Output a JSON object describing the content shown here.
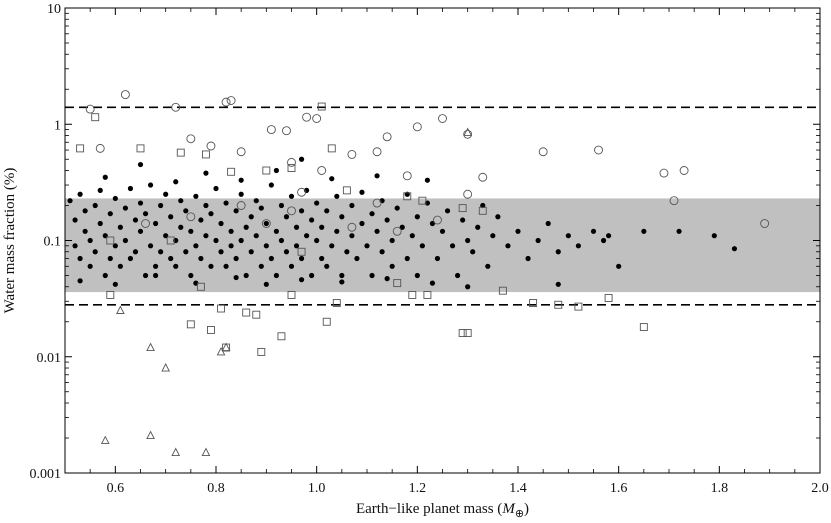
{
  "chart_data": {
    "type": "scatter",
    "title": "",
    "xlabel": "Earth−like planet mass (",
    "xlabel_symbol": "M",
    "xlabel_sub": "⊕",
    "xlabel_close": ")",
    "ylabel": "Water mass fraction (%)",
    "xlim": [
      0.5,
      2.0
    ],
    "ylim": [
      0.001,
      10
    ],
    "yscale": "log",
    "grid": false,
    "x_ticks": [
      0.6,
      0.8,
      1.0,
      1.2,
      1.4,
      1.6,
      1.8,
      2.0
    ],
    "x_tick_labels": [
      "0.6",
      "0.8",
      "1.0",
      "1.2",
      "1.4",
      "1.6",
      "1.8",
      "2.0"
    ],
    "y_ticks": [
      0.001,
      0.01,
      0.1,
      1,
      10
    ],
    "y_tick_labels": [
      "0.001",
      "0.01",
      "0.1",
      "1",
      "10"
    ],
    "reference_lines": {
      "upper": 1.4,
      "lower": 0.028,
      "style": "dashed"
    },
    "shaded_band": {
      "low": 0.036,
      "high": 0.23,
      "color": "#c0c0c0"
    },
    "colors": {
      "band": "#c0c0c0",
      "markers": "#000000",
      "open_markers": "#555555"
    },
    "series": [
      {
        "marker": "filled-circle",
        "points": [
          [
            0.51,
            0.22
          ],
          [
            0.52,
            0.15
          ],
          [
            0.52,
            0.09
          ],
          [
            0.53,
            0.25
          ],
          [
            0.53,
            0.07
          ],
          [
            0.54,
            0.12
          ],
          [
            0.54,
            0.18
          ],
          [
            0.55,
            0.06
          ],
          [
            0.55,
            0.1
          ],
          [
            0.56,
            0.2
          ],
          [
            0.56,
            0.08
          ],
          [
            0.57,
            0.14
          ],
          [
            0.57,
            0.27
          ],
          [
            0.58,
            0.05
          ],
          [
            0.58,
            0.11
          ],
          [
            0.59,
            0.17
          ],
          [
            0.59,
            0.07
          ],
          [
            0.6,
            0.23
          ],
          [
            0.6,
            0.09
          ],
          [
            0.61,
            0.13
          ],
          [
            0.61,
            0.06
          ],
          [
            0.62,
            0.19
          ],
          [
            0.62,
            0.1
          ],
          [
            0.63,
            0.28
          ],
          [
            0.63,
            0.07
          ],
          [
            0.64,
            0.15
          ],
          [
            0.64,
            0.08
          ],
          [
            0.65,
            0.21
          ],
          [
            0.65,
            0.12
          ],
          [
            0.66,
            0.05
          ],
          [
            0.66,
            0.17
          ],
          [
            0.67,
            0.09
          ],
          [
            0.67,
            0.3
          ],
          [
            0.68,
            0.06
          ],
          [
            0.68,
            0.14
          ],
          [
            0.69,
            0.2
          ],
          [
            0.69,
            0.08
          ],
          [
            0.7,
            0.11
          ],
          [
            0.7,
            0.25
          ],
          [
            0.71,
            0.07
          ],
          [
            0.71,
            0.16
          ],
          [
            0.72,
            0.1
          ],
          [
            0.72,
            0.06
          ],
          [
            0.73,
            0.22
          ],
          [
            0.73,
            0.13
          ],
          [
            0.74,
            0.08
          ],
          [
            0.74,
            0.18
          ],
          [
            0.75,
            0.05
          ],
          [
            0.75,
            0.12
          ],
          [
            0.76,
            0.24
          ],
          [
            0.76,
            0.09
          ],
          [
            0.77,
            0.15
          ],
          [
            0.77,
            0.07
          ],
          [
            0.78,
            0.2
          ],
          [
            0.78,
            0.11
          ],
          [
            0.79,
            0.06
          ],
          [
            0.79,
            0.17
          ],
          [
            0.8,
            0.1
          ],
          [
            0.8,
            0.28
          ],
          [
            0.81,
            0.08
          ],
          [
            0.81,
            0.14
          ],
          [
            0.82,
            0.06
          ],
          [
            0.82,
            0.21
          ],
          [
            0.83,
            0.12
          ],
          [
            0.83,
            0.09
          ],
          [
            0.84,
            0.18
          ],
          [
            0.84,
            0.07
          ],
          [
            0.85,
            0.25
          ],
          [
            0.85,
            0.1
          ],
          [
            0.86,
            0.13
          ],
          [
            0.86,
            0.05
          ],
          [
            0.87,
            0.16
          ],
          [
            0.87,
            0.08
          ],
          [
            0.88,
            0.22
          ],
          [
            0.88,
            0.11
          ],
          [
            0.89,
            0.06
          ],
          [
            0.89,
            0.19
          ],
          [
            0.9,
            0.09
          ],
          [
            0.9,
            0.14
          ],
          [
            0.91,
            0.3
          ],
          [
            0.91,
            0.07
          ],
          [
            0.92,
            0.12
          ],
          [
            0.92,
            0.05
          ],
          [
            0.93,
            0.2
          ],
          [
            0.93,
            0.1
          ],
          [
            0.94,
            0.16
          ],
          [
            0.94,
            0.08
          ],
          [
            0.95,
            0.24
          ],
          [
            0.95,
            0.06
          ],
          [
            0.96,
            0.13
          ],
          [
            0.96,
            0.09
          ],
          [
            0.97,
            0.18
          ],
          [
            0.97,
            0.07
          ],
          [
            0.98,
            0.11
          ],
          [
            0.98,
            0.27
          ],
          [
            0.99,
            0.05
          ],
          [
            0.99,
            0.15
          ],
          [
            1.0,
            0.1
          ],
          [
            1.0,
            0.21
          ],
          [
            1.01,
            0.07
          ],
          [
            1.01,
            0.13
          ],
          [
            1.02,
            0.06
          ],
          [
            1.02,
            0.18
          ],
          [
            1.03,
            0.09
          ],
          [
            1.04,
            0.24
          ],
          [
            1.04,
            0.12
          ],
          [
            1.05,
            0.05
          ],
          [
            1.05,
            0.16
          ],
          [
            1.06,
            0.08
          ],
          [
            1.07,
            0.2
          ],
          [
            1.07,
            0.11
          ],
          [
            1.08,
            0.07
          ],
          [
            1.09,
            0.14
          ],
          [
            1.09,
            0.26
          ],
          [
            1.1,
            0.09
          ],
          [
            1.11,
            0.05
          ],
          [
            1.11,
            0.17
          ],
          [
            1.12,
            0.12
          ],
          [
            1.13,
            0.08
          ],
          [
            1.13,
            0.22
          ],
          [
            1.14,
            0.15
          ],
          [
            1.15,
            0.06
          ],
          [
            1.15,
            0.1
          ],
          [
            1.16,
            0.19
          ],
          [
            1.17,
            0.13
          ],
          [
            1.18,
            0.07
          ],
          [
            1.18,
            0.25
          ],
          [
            1.19,
            0.11
          ],
          [
            1.2,
            0.16
          ],
          [
            1.2,
            0.05
          ],
          [
            1.21,
            0.09
          ],
          [
            1.22,
            0.21
          ],
          [
            1.23,
            0.14
          ],
          [
            1.24,
            0.07
          ],
          [
            1.25,
            0.12
          ],
          [
            1.26,
            0.18
          ],
          [
            1.27,
            0.09
          ],
          [
            1.28,
            0.05
          ],
          [
            1.29,
            0.15
          ],
          [
            1.3,
            0.1
          ],
          [
            1.31,
            0.08
          ],
          [
            1.32,
            0.13
          ],
          [
            1.33,
            0.2
          ],
          [
            1.34,
            0.06
          ],
          [
            1.35,
            0.11
          ],
          [
            1.36,
            0.16
          ],
          [
            1.38,
            0.09
          ],
          [
            1.4,
            0.12
          ],
          [
            1.42,
            0.07
          ],
          [
            1.44,
            0.1
          ],
          [
            1.46,
            0.14
          ],
          [
            1.48,
            0.08
          ],
          [
            1.5,
            0.11
          ],
          [
            1.52,
            0.09
          ],
          [
            1.55,
            0.12
          ],
          [
            1.57,
            0.1
          ],
          [
            1.58,
            0.11
          ],
          [
            1.6,
            0.06
          ],
          [
            1.65,
            0.12
          ],
          [
            1.72,
            0.12
          ],
          [
            1.79,
            0.11
          ],
          [
            1.83,
            0.085
          ],
          [
            0.58,
            0.35
          ],
          [
            0.65,
            0.45
          ],
          [
            0.72,
            0.32
          ],
          [
            0.78,
            0.38
          ],
          [
            0.85,
            0.33
          ],
          [
            0.92,
            0.4
          ],
          [
            0.97,
            0.5
          ],
          [
            1.03,
            0.34
          ],
          [
            1.12,
            0.36
          ],
          [
            1.22,
            0.33
          ],
          [
            0.53,
            0.045
          ],
          [
            0.6,
            0.042
          ],
          [
            0.68,
            0.05
          ],
          [
            0.76,
            0.043
          ],
          [
            0.84,
            0.048
          ],
          [
            0.9,
            0.042
          ],
          [
            0.97,
            0.046
          ],
          [
            1.05,
            0.044
          ],
          [
            1.14,
            0.047
          ],
          [
            1.23,
            0.043
          ],
          [
            1.3,
            0.04
          ],
          [
            1.48,
            0.042
          ]
        ]
      },
      {
        "marker": "open-circle",
        "points": [
          [
            0.55,
            1.35
          ],
          [
            0.62,
            1.8
          ],
          [
            0.72,
            1.4
          ],
          [
            0.82,
            1.55
          ],
          [
            0.83,
            1.6
          ],
          [
            0.57,
            0.62
          ],
          [
            0.75,
            0.75
          ],
          [
            0.79,
            0.65
          ],
          [
            0.85,
            0.58
          ],
          [
            0.91,
            0.9
          ],
          [
            0.94,
            0.88
          ],
          [
            0.98,
            1.15
          ],
          [
            1.0,
            1.12
          ],
          [
            1.07,
            0.55
          ],
          [
            1.12,
            0.58
          ],
          [
            1.14,
            0.78
          ],
          [
            1.2,
            0.95
          ],
          [
            1.25,
            1.12
          ],
          [
            1.3,
            0.82
          ],
          [
            1.33,
            0.35
          ],
          [
            1.45,
            0.58
          ],
          [
            1.56,
            0.6
          ],
          [
            1.69,
            0.38
          ],
          [
            1.71,
            0.22
          ],
          [
            1.73,
            0.4
          ],
          [
            1.89,
            0.14
          ],
          [
            1.3,
            0.25
          ],
          [
            1.24,
            0.15
          ],
          [
            0.75,
            0.16
          ],
          [
            0.95,
            0.47
          ],
          [
            1.01,
            0.4
          ],
          [
            0.97,
            0.26
          ],
          [
            0.95,
            0.18
          ],
          [
            1.18,
            0.36
          ],
          [
            1.12,
            0.21
          ],
          [
            0.66,
            0.14
          ],
          [
            0.85,
            0.2
          ],
          [
            0.9,
            0.14
          ],
          [
            1.07,
            0.13
          ],
          [
            1.16,
            0.12
          ]
        ]
      },
      {
        "marker": "open-square",
        "points": [
          [
            0.53,
            0.62
          ],
          [
            0.56,
            1.15
          ],
          [
            0.65,
            0.62
          ],
          [
            0.73,
            0.57
          ],
          [
            0.78,
            0.55
          ],
          [
            0.83,
            0.39
          ],
          [
            0.9,
            0.4
          ],
          [
            0.95,
            0.42
          ],
          [
            1.01,
            1.42
          ],
          [
            1.03,
            0.62
          ],
          [
            1.06,
            0.27
          ],
          [
            1.18,
            0.24
          ],
          [
            1.21,
            0.22
          ],
          [
            1.29,
            0.19
          ],
          [
            1.33,
            0.18
          ],
          [
            0.59,
            0.034
          ],
          [
            0.75,
            0.019
          ],
          [
            0.79,
            0.017
          ],
          [
            0.81,
            0.026
          ],
          [
            0.82,
            0.012
          ],
          [
            0.86,
            0.024
          ],
          [
            0.88,
            0.023
          ],
          [
            0.89,
            0.011
          ],
          [
            0.93,
            0.015
          ],
          [
            0.95,
            0.034
          ],
          [
            1.02,
            0.02
          ],
          [
            1.04,
            0.029
          ],
          [
            1.19,
            0.034
          ],
          [
            1.22,
            0.034
          ],
          [
            1.29,
            0.016
          ],
          [
            1.3,
            0.016
          ],
          [
            1.37,
            0.037
          ],
          [
            1.43,
            0.029
          ],
          [
            1.48,
            0.028
          ],
          [
            1.52,
            0.027
          ],
          [
            1.58,
            0.032
          ],
          [
            1.65,
            0.018
          ],
          [
            0.59,
            0.1
          ],
          [
            0.71,
            0.1
          ],
          [
            0.77,
            0.04
          ],
          [
            0.97,
            0.08
          ],
          [
            1.16,
            0.043
          ]
        ]
      },
      {
        "marker": "open-triangle",
        "points": [
          [
            0.58,
            0.0019
          ],
          [
            0.61,
            0.025
          ],
          [
            0.67,
            0.012
          ],
          [
            0.67,
            0.0021
          ],
          [
            0.7,
            0.008
          ],
          [
            0.72,
            0.0015
          ],
          [
            0.78,
            0.0015
          ],
          [
            0.81,
            0.011
          ],
          [
            0.82,
            0.012
          ],
          [
            1.3,
            0.85
          ]
        ]
      }
    ]
  }
}
